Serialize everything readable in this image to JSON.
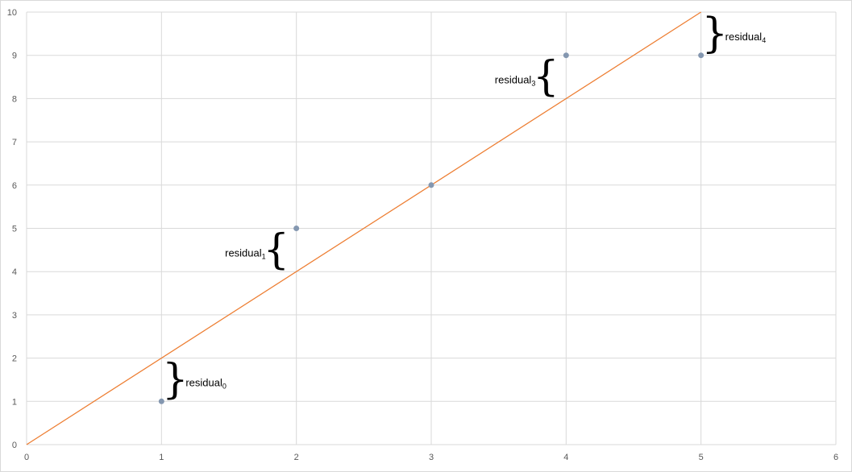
{
  "chart_data": {
    "type": "scatter",
    "title": "",
    "xlabel": "",
    "ylabel": "",
    "xlim": [
      0,
      6
    ],
    "ylim": [
      0,
      10
    ],
    "x_ticks": [
      0,
      1,
      2,
      3,
      4,
      5,
      6
    ],
    "y_ticks": [
      0,
      1,
      2,
      3,
      4,
      5,
      6,
      7,
      8,
      9,
      10
    ],
    "grid": true,
    "series": [
      {
        "kind": "points",
        "color": "#8497b0",
        "points": [
          [
            1,
            1
          ],
          [
            2,
            5
          ],
          [
            3,
            6
          ],
          [
            4,
            9
          ],
          [
            5,
            9
          ]
        ]
      },
      {
        "kind": "line",
        "color": "#ed7d31",
        "points": [
          [
            0,
            0
          ],
          [
            5,
            10
          ]
        ]
      }
    ],
    "annotations": [
      {
        "label": "residual",
        "sub": "0",
        "x": 1,
        "y_from": 1,
        "y_to": 2,
        "side": "right"
      },
      {
        "label": "residual",
        "sub": "1",
        "x": 2,
        "y_from": 4,
        "y_to": 5,
        "side": "left"
      },
      {
        "label": "residual",
        "sub": "3",
        "x": 4,
        "y_from": 8,
        "y_to": 9,
        "side": "left"
      },
      {
        "label": "residual",
        "sub": "4",
        "x": 5,
        "y_from": 9,
        "y_to": 10,
        "side": "right"
      }
    ]
  }
}
